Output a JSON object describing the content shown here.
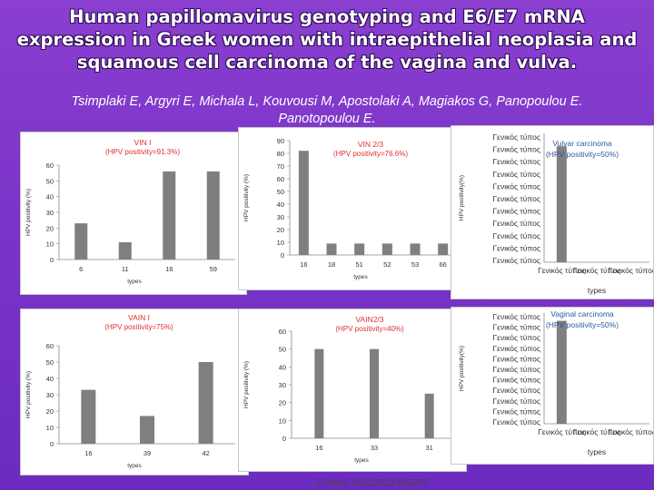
{
  "slide": {
    "title_line1": "Human papillomavirus genotyping and E6/E7 mRNA",
    "title_line2": "expression in Greek women with intraepithelial neoplasia and",
    "title_line3": "squamous cell carcinoma of the vagina and vulva.",
    "authors_line1": "Tsimplaki E, Argyri E, Michala L, Kouvousi M, Apostolaki A, Magiakos G, Panopoulou E.",
    "authors_line2": "Panotopoulou E.",
    "citation": "J Oncol. 2012;2012:893275"
  },
  "colors": {
    "bar": "#7f7f7f",
    "title": "#e03030",
    "note": "#2a5aa0"
  },
  "chart_data": [
    {
      "id": "vin1",
      "type": "bar",
      "title": "VIN I",
      "subtitle": "(HPV positivity=91.3%)",
      "ylabel": "HPV positivity (%)",
      "xlabel": "types",
      "categories": [
        "6",
        "11",
        "16",
        "59"
      ],
      "values": [
        23,
        11,
        56,
        56
      ],
      "ylim": [
        0,
        60
      ],
      "yticks": [
        0,
        10,
        20,
        30,
        40,
        50,
        60
      ],
      "grid": false
    },
    {
      "id": "vin23",
      "type": "bar",
      "title": "VIN 2/3",
      "subtitle": "(HPV positivity=76.6%)",
      "ylabel": "HPV positivity (%)",
      "xlabel": "types",
      "categories": [
        "16",
        "18",
        "51",
        "52",
        "53",
        "66"
      ],
      "values": [
        82,
        9,
        9,
        9,
        9,
        9
      ],
      "ylim": [
        0,
        90
      ],
      "yticks": [
        0,
        10,
        20,
        30,
        40,
        50,
        60,
        70,
        80,
        90
      ],
      "grid": false
    },
    {
      "id": "vulvar",
      "type": "bar",
      "note_line1": "Vulvar carcinoma",
      "note_line2": "(HPV positivity=50%)",
      "ylabel": "HPV positivity(%)",
      "xlabel": "types",
      "ytick_labels": [
        "Γενικός τύπος",
        "Γενικός τύπος",
        "Γενικός τύπος",
        "Γενικός τύπος",
        "Γενικός τύπος",
        "Γενικός τύπος",
        "Γενικός τύπος",
        "Γενικός τύπος",
        "Γενικός τύπος",
        "Γενικός τύπος",
        "Γενικός τύπος"
      ],
      "categories": [
        "Γενικός τύπος",
        "Γενικός τύπος",
        "Γενικός τύπος"
      ],
      "values": [
        0.9,
        0,
        0
      ],
      "ylim": [
        0,
        1
      ],
      "grid": false
    },
    {
      "id": "vain1",
      "type": "bar",
      "title": "VAIN I",
      "subtitle": "(HPV positivity=75%)",
      "ylabel": "HPV positivity (%)",
      "xlabel": "types",
      "categories": [
        "16",
        "39",
        "42"
      ],
      "values": [
        33,
        17,
        50
      ],
      "ylim": [
        0,
        60
      ],
      "yticks": [
        0,
        10,
        20,
        30,
        40,
        50,
        60
      ],
      "grid": false
    },
    {
      "id": "vain23",
      "type": "bar",
      "title": "VAIN2/3",
      "subtitle": "(HPV positivity=40%)",
      "ylabel": "HPV positivity (%)",
      "xlabel": "types",
      "categories": [
        "16",
        "33",
        "31"
      ],
      "values": [
        50,
        50,
        25
      ],
      "ylim": [
        0,
        60
      ],
      "yticks": [
        0,
        10,
        20,
        30,
        40,
        50,
        60
      ],
      "grid": false
    },
    {
      "id": "vaginal",
      "type": "bar",
      "note_line1": "Vaginal carcinoma",
      "note_line2": "(HPV positivity=50%)",
      "ylabel": "HPV positivity(%)",
      "xlabel": "types",
      "ytick_labels": [
        "Γενικός τύπος",
        "Γενικός τύπος",
        "Γενικός τύπος",
        "Γενικός τύπος",
        "Γενικός τύπος",
        "Γενικός τύπος",
        "Γενικός τύπος",
        "Γενικός τύπος",
        "Γενικός τύπος",
        "Γενικός τύπος",
        "Γενικός τύπος"
      ],
      "categories": [
        "Γενικός τύπος",
        "Γενικός τύπος",
        "Γενικός τύπος"
      ],
      "values": [
        0.93,
        0,
        0
      ],
      "ylim": [
        0,
        1
      ],
      "grid": false
    }
  ]
}
